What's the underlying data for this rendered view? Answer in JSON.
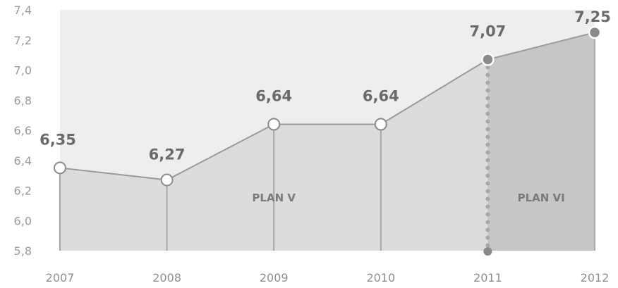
{
  "chart_data": {
    "type": "area",
    "categories": [
      "2007",
      "2008",
      "2009",
      "2010",
      "2011",
      "2012"
    ],
    "values": [
      6.35,
      6.27,
      6.64,
      6.64,
      7.07,
      7.25
    ],
    "data_labels": [
      "6,35",
      "6,27",
      "6,64",
      "6,64",
      "7,07",
      "7,25"
    ],
    "ylim": [
      5.8,
      7.4
    ],
    "yticks": [
      5.8,
      6.0,
      6.2,
      6.4,
      6.6,
      6.8,
      7.0,
      7.2,
      7.4
    ],
    "ytick_labels": [
      "5,8",
      "6,0",
      "6,2",
      "6,4",
      "6,6",
      "6,8",
      "7,0",
      "7,2",
      "7,4"
    ],
    "title": "",
    "xlabel": "",
    "ylabel": "",
    "grid": false,
    "regions": [
      {
        "label": "PLAN V",
        "from": "2007",
        "to": "2011",
        "color": "#dcdcdc"
      },
      {
        "label": "PLAN VI",
        "from": "2011",
        "to": "2012",
        "color": "#c6c6c6"
      }
    ],
    "colors": {
      "plot_background": "#eeeeee",
      "line": "#9a9a9a",
      "marker_fill": "#ffffff",
      "marker_fill_highlight": "#8a8a8a",
      "divider": "#a8a8a8"
    }
  }
}
